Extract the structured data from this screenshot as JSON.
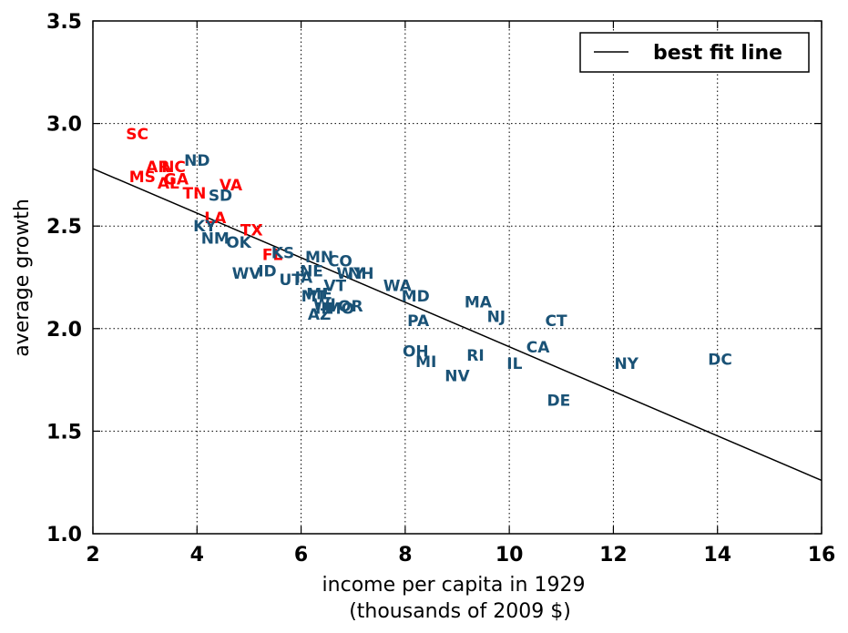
{
  "chart_data": {
    "type": "scatter",
    "title": "",
    "xlabel_line1": "income per capita in 1929",
    "xlabel_line2": "(thousands of 2009 $)",
    "ylabel": "average growth",
    "xlim": [
      2,
      16
    ],
    "ylim": [
      1.0,
      3.5
    ],
    "x_ticks": [
      "2",
      "4",
      "6",
      "8",
      "10",
      "12",
      "14",
      "16"
    ],
    "y_ticks": [
      "1.0",
      "1.5",
      "2.0",
      "2.5",
      "3.0",
      "3.5"
    ],
    "grid": true,
    "legend": {
      "position": "top-right",
      "entries": [
        "best fit line"
      ]
    },
    "fit_line": {
      "name": "best fit line",
      "x": [
        2,
        16
      ],
      "y": [
        2.78,
        1.26
      ]
    },
    "colors": {
      "south": "#ff0000",
      "other": "#1a5276",
      "line": "#000000"
    },
    "points": [
      {
        "label": "SC",
        "x": 2.85,
        "y": 2.95,
        "south": true
      },
      {
        "label": "AR",
        "x": 3.25,
        "y": 2.79,
        "south": true
      },
      {
        "label": "NC",
        "x": 3.55,
        "y": 2.79,
        "south": true
      },
      {
        "label": "MS",
        "x": 2.95,
        "y": 2.74,
        "south": true
      },
      {
        "label": "GA",
        "x": 3.6,
        "y": 2.73,
        "south": true
      },
      {
        "label": "AL",
        "x": 3.45,
        "y": 2.71,
        "south": true
      },
      {
        "label": "ND",
        "x": 4.0,
        "y": 2.82,
        "south": false
      },
      {
        "label": "VA",
        "x": 4.65,
        "y": 2.7,
        "south": true
      },
      {
        "label": "TN",
        "x": 3.95,
        "y": 2.66,
        "south": true
      },
      {
        "label": "SD",
        "x": 4.45,
        "y": 2.65,
        "south": false
      },
      {
        "label": "LA",
        "x": 4.35,
        "y": 2.54,
        "south": true
      },
      {
        "label": "KY",
        "x": 4.15,
        "y": 2.5,
        "south": false
      },
      {
        "label": "TX",
        "x": 5.05,
        "y": 2.48,
        "south": true
      },
      {
        "label": "NM",
        "x": 4.35,
        "y": 2.44,
        "south": false
      },
      {
        "label": "OK",
        "x": 4.8,
        "y": 2.42,
        "south": false
      },
      {
        "label": "FL",
        "x": 5.45,
        "y": 2.36,
        "south": true
      },
      {
        "label": "KS",
        "x": 5.65,
        "y": 2.37,
        "south": false
      },
      {
        "label": "MN",
        "x": 6.35,
        "y": 2.35,
        "south": false
      },
      {
        "label": "CO",
        "x": 6.75,
        "y": 2.33,
        "south": false
      },
      {
        "label": "NE",
        "x": 6.2,
        "y": 2.28,
        "south": false
      },
      {
        "label": "WV",
        "x": 4.95,
        "y": 2.27,
        "south": false
      },
      {
        "label": "ID",
        "x": 5.35,
        "y": 2.28,
        "south": false
      },
      {
        "label": "WY",
        "x": 6.95,
        "y": 2.27,
        "south": false
      },
      {
        "label": "NH",
        "x": 7.15,
        "y": 2.27,
        "south": false
      },
      {
        "label": "IA",
        "x": 6.05,
        "y": 2.25,
        "south": false
      },
      {
        "label": "UT",
        "x": 5.8,
        "y": 2.24,
        "south": false
      },
      {
        "label": "VT",
        "x": 6.65,
        "y": 2.21,
        "south": false
      },
      {
        "label": "WA",
        "x": 7.85,
        "y": 2.21,
        "south": false
      },
      {
        "label": "ME",
        "x": 6.35,
        "y": 2.17,
        "south": false
      },
      {
        "label": "MT",
        "x": 6.25,
        "y": 2.16,
        "south": false
      },
      {
        "label": "MD",
        "x": 8.2,
        "y": 2.16,
        "south": false
      },
      {
        "label": "WI",
        "x": 6.45,
        "y": 2.12,
        "south": false
      },
      {
        "label": "MA",
        "x": 9.4,
        "y": 2.13,
        "south": false
      },
      {
        "label": "OR",
        "x": 6.95,
        "y": 2.11,
        "south": false
      },
      {
        "label": "IN",
        "x": 6.45,
        "y": 2.1,
        "south": false
      },
      {
        "label": "MO",
        "x": 6.75,
        "y": 2.1,
        "south": false
      },
      {
        "label": "AZ",
        "x": 6.35,
        "y": 2.07,
        "south": false
      },
      {
        "label": "NJ",
        "x": 9.75,
        "y": 2.06,
        "south": false
      },
      {
        "label": "CT",
        "x": 10.9,
        "y": 2.04,
        "south": false
      },
      {
        "label": "PA",
        "x": 8.25,
        "y": 2.04,
        "south": false
      },
      {
        "label": "CA",
        "x": 10.55,
        "y": 1.91,
        "south": false
      },
      {
        "label": "OH",
        "x": 8.2,
        "y": 1.89,
        "south": false
      },
      {
        "label": "RI",
        "x": 9.35,
        "y": 1.87,
        "south": false
      },
      {
        "label": "MI",
        "x": 8.4,
        "y": 1.84,
        "south": false
      },
      {
        "label": "NY",
        "x": 12.25,
        "y": 1.83,
        "south": false
      },
      {
        "label": "IL",
        "x": 10.1,
        "y": 1.83,
        "south": false
      },
      {
        "label": "DC",
        "x": 14.05,
        "y": 1.85,
        "south": false
      },
      {
        "label": "NV",
        "x": 9.0,
        "y": 1.77,
        "south": false
      },
      {
        "label": "DE",
        "x": 10.95,
        "y": 1.65,
        "south": false
      }
    ]
  }
}
